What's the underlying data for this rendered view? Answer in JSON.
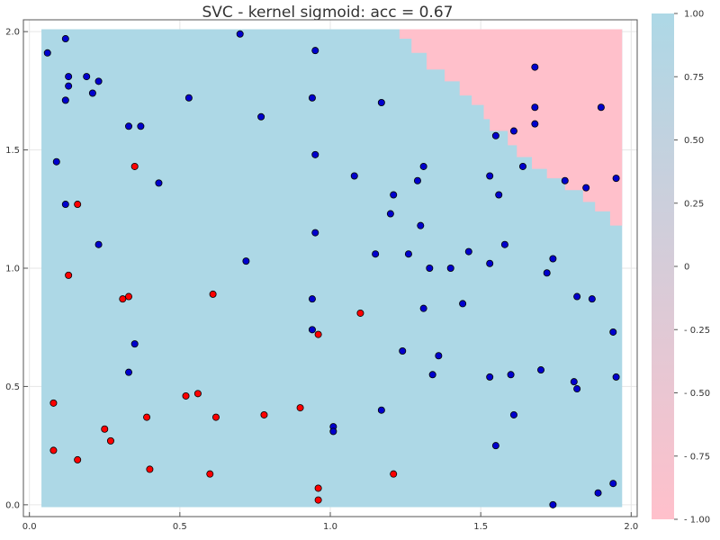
{
  "chart_data": {
    "type": "scatter",
    "title": "SVC - kernel sigmoid: acc = 0.67",
    "xlabel": "",
    "ylabel": "",
    "xlim": [
      -0.02,
      2.02
    ],
    "ylim": [
      -0.05,
      2.05
    ],
    "x_ticks": [
      "0.0",
      "0.5",
      "1.0",
      "1.5",
      "2.0"
    ],
    "y_ticks": [
      "0.0",
      "0.5",
      "1.0",
      "1.5",
      "2.0"
    ],
    "grid": true,
    "decision_region": {
      "x_range": [
        0.04,
        1.97
      ],
      "y_range": [
        -0.01,
        2.01
      ],
      "positive_color": "#add8e6",
      "negative_color": "#ffc0cb",
      "negative_region_boundary": [
        [
          1.17,
          2.01
        ],
        [
          1.23,
          1.97
        ],
        [
          1.27,
          1.91
        ],
        [
          1.32,
          1.84
        ],
        [
          1.38,
          1.79
        ],
        [
          1.43,
          1.73
        ],
        [
          1.47,
          1.69
        ],
        [
          1.51,
          1.63
        ],
        [
          1.53,
          1.58
        ],
        [
          1.59,
          1.52
        ],
        [
          1.62,
          1.47
        ],
        [
          1.67,
          1.42
        ],
        [
          1.72,
          1.38
        ],
        [
          1.78,
          1.33
        ],
        [
          1.84,
          1.28
        ],
        [
          1.88,
          1.24
        ],
        [
          1.93,
          1.18
        ],
        [
          1.97,
          1.16
        ]
      ]
    },
    "colorbar": {
      "ticks": [
        "1.00",
        "0.75",
        "0.50",
        "0.25",
        "0",
        "- 0.25",
        "- 0.50",
        "- 0.75",
        "- 1.00"
      ],
      "top_color": "#add8e6",
      "bottom_color": "#ffc0cb"
    },
    "series": [
      {
        "color": "#0000cd",
        "points": [
          [
            0.06,
            1.91
          ],
          [
            0.12,
            1.97
          ],
          [
            0.13,
            1.81
          ],
          [
            0.13,
            1.77
          ],
          [
            0.12,
            1.71
          ],
          [
            0.19,
            1.81
          ],
          [
            0.21,
            1.74
          ],
          [
            0.23,
            1.79
          ],
          [
            0.53,
            1.72
          ],
          [
            0.7,
            1.99
          ],
          [
            0.77,
            1.64
          ],
          [
            0.95,
            1.92
          ],
          [
            0.94,
            1.72
          ],
          [
            0.33,
            1.6
          ],
          [
            0.37,
            1.6
          ],
          [
            0.09,
            1.45
          ],
          [
            0.43,
            1.36
          ],
          [
            0.12,
            1.27
          ],
          [
            0.23,
            1.1
          ],
          [
            0.95,
            1.48
          ],
          [
            1.08,
            1.39
          ],
          [
            1.17,
            1.7
          ],
          [
            1.31,
            1.43
          ],
          [
            1.29,
            1.37
          ],
          [
            1.21,
            1.31
          ],
          [
            1.2,
            1.23
          ],
          [
            1.3,
            1.18
          ],
          [
            0.95,
            1.15
          ],
          [
            1.26,
            1.06
          ],
          [
            1.15,
            1.06
          ],
          [
            1.33,
            1.0
          ],
          [
            1.4,
            1.0
          ],
          [
            1.46,
            1.07
          ],
          [
            1.53,
            1.39
          ],
          [
            1.56,
            1.31
          ],
          [
            1.55,
            1.56
          ],
          [
            1.61,
            1.58
          ],
          [
            1.64,
            1.43
          ],
          [
            1.68,
            1.68
          ],
          [
            1.68,
            1.61
          ],
          [
            1.68,
            1.85
          ],
          [
            1.78,
            1.37
          ],
          [
            1.85,
            1.34
          ],
          [
            1.9,
            1.68
          ],
          [
            1.95,
            1.38
          ],
          [
            1.58,
            1.1
          ],
          [
            1.53,
            1.02
          ],
          [
            1.72,
            0.98
          ],
          [
            1.74,
            1.04
          ],
          [
            1.82,
            0.88
          ],
          [
            1.87,
            0.87
          ],
          [
            1.94,
            0.73
          ],
          [
            1.95,
            0.54
          ],
          [
            1.7,
            0.57
          ],
          [
            1.81,
            0.52
          ],
          [
            1.82,
            0.49
          ],
          [
            1.6,
            0.55
          ],
          [
            1.61,
            0.38
          ],
          [
            1.53,
            0.54
          ],
          [
            1.55,
            0.25
          ],
          [
            1.74,
            0.0
          ],
          [
            1.89,
            0.05
          ],
          [
            1.94,
            0.09
          ],
          [
            1.44,
            0.85
          ],
          [
            1.31,
            0.83
          ],
          [
            1.36,
            0.63
          ],
          [
            1.24,
            0.65
          ],
          [
            1.34,
            0.55
          ],
          [
            1.17,
            0.4
          ],
          [
            1.01,
            0.33
          ],
          [
            1.01,
            0.31
          ],
          [
            0.94,
            0.87
          ],
          [
            0.94,
            0.74
          ],
          [
            0.72,
            1.03
          ],
          [
            0.35,
            0.68
          ],
          [
            0.33,
            0.56
          ]
        ]
      },
      {
        "color": "#ff0000",
        "points": [
          [
            0.35,
            1.43
          ],
          [
            0.16,
            1.27
          ],
          [
            0.13,
            0.97
          ],
          [
            0.31,
            0.87
          ],
          [
            0.33,
            0.88
          ],
          [
            0.61,
            0.89
          ],
          [
            0.08,
            0.43
          ],
          [
            0.08,
            0.23
          ],
          [
            0.16,
            0.19
          ],
          [
            0.25,
            0.32
          ],
          [
            0.27,
            0.27
          ],
          [
            0.39,
            0.37
          ],
          [
            0.4,
            0.15
          ],
          [
            0.52,
            0.46
          ],
          [
            0.56,
            0.47
          ],
          [
            0.62,
            0.37
          ],
          [
            0.6,
            0.13
          ],
          [
            0.78,
            0.38
          ],
          [
            0.9,
            0.41
          ],
          [
            0.96,
            0.72
          ],
          [
            1.1,
            0.81
          ],
          [
            0.96,
            0.02
          ],
          [
            0.96,
            0.07
          ],
          [
            1.21,
            0.13
          ]
        ]
      }
    ]
  }
}
